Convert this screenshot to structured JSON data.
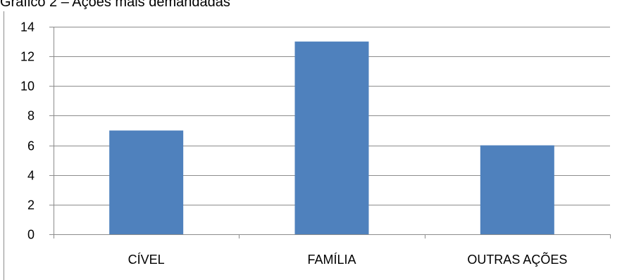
{
  "caption": "Gráfico 2 – Ações mais demandadas",
  "chart_data": {
    "type": "bar",
    "categories": [
      "CÍVEL",
      "FAMÍLIA",
      "OUTRAS AÇÕES"
    ],
    "values": [
      7,
      13,
      6
    ],
    "title": "",
    "xlabel": "",
    "ylabel": "",
    "ylim": [
      0,
      14
    ],
    "yticks": [
      0,
      2,
      4,
      6,
      8,
      10,
      12,
      14
    ],
    "grid": true,
    "legend": "none",
    "bar_color": "#4f81bd",
    "grid_color": "#8c8c8c"
  }
}
